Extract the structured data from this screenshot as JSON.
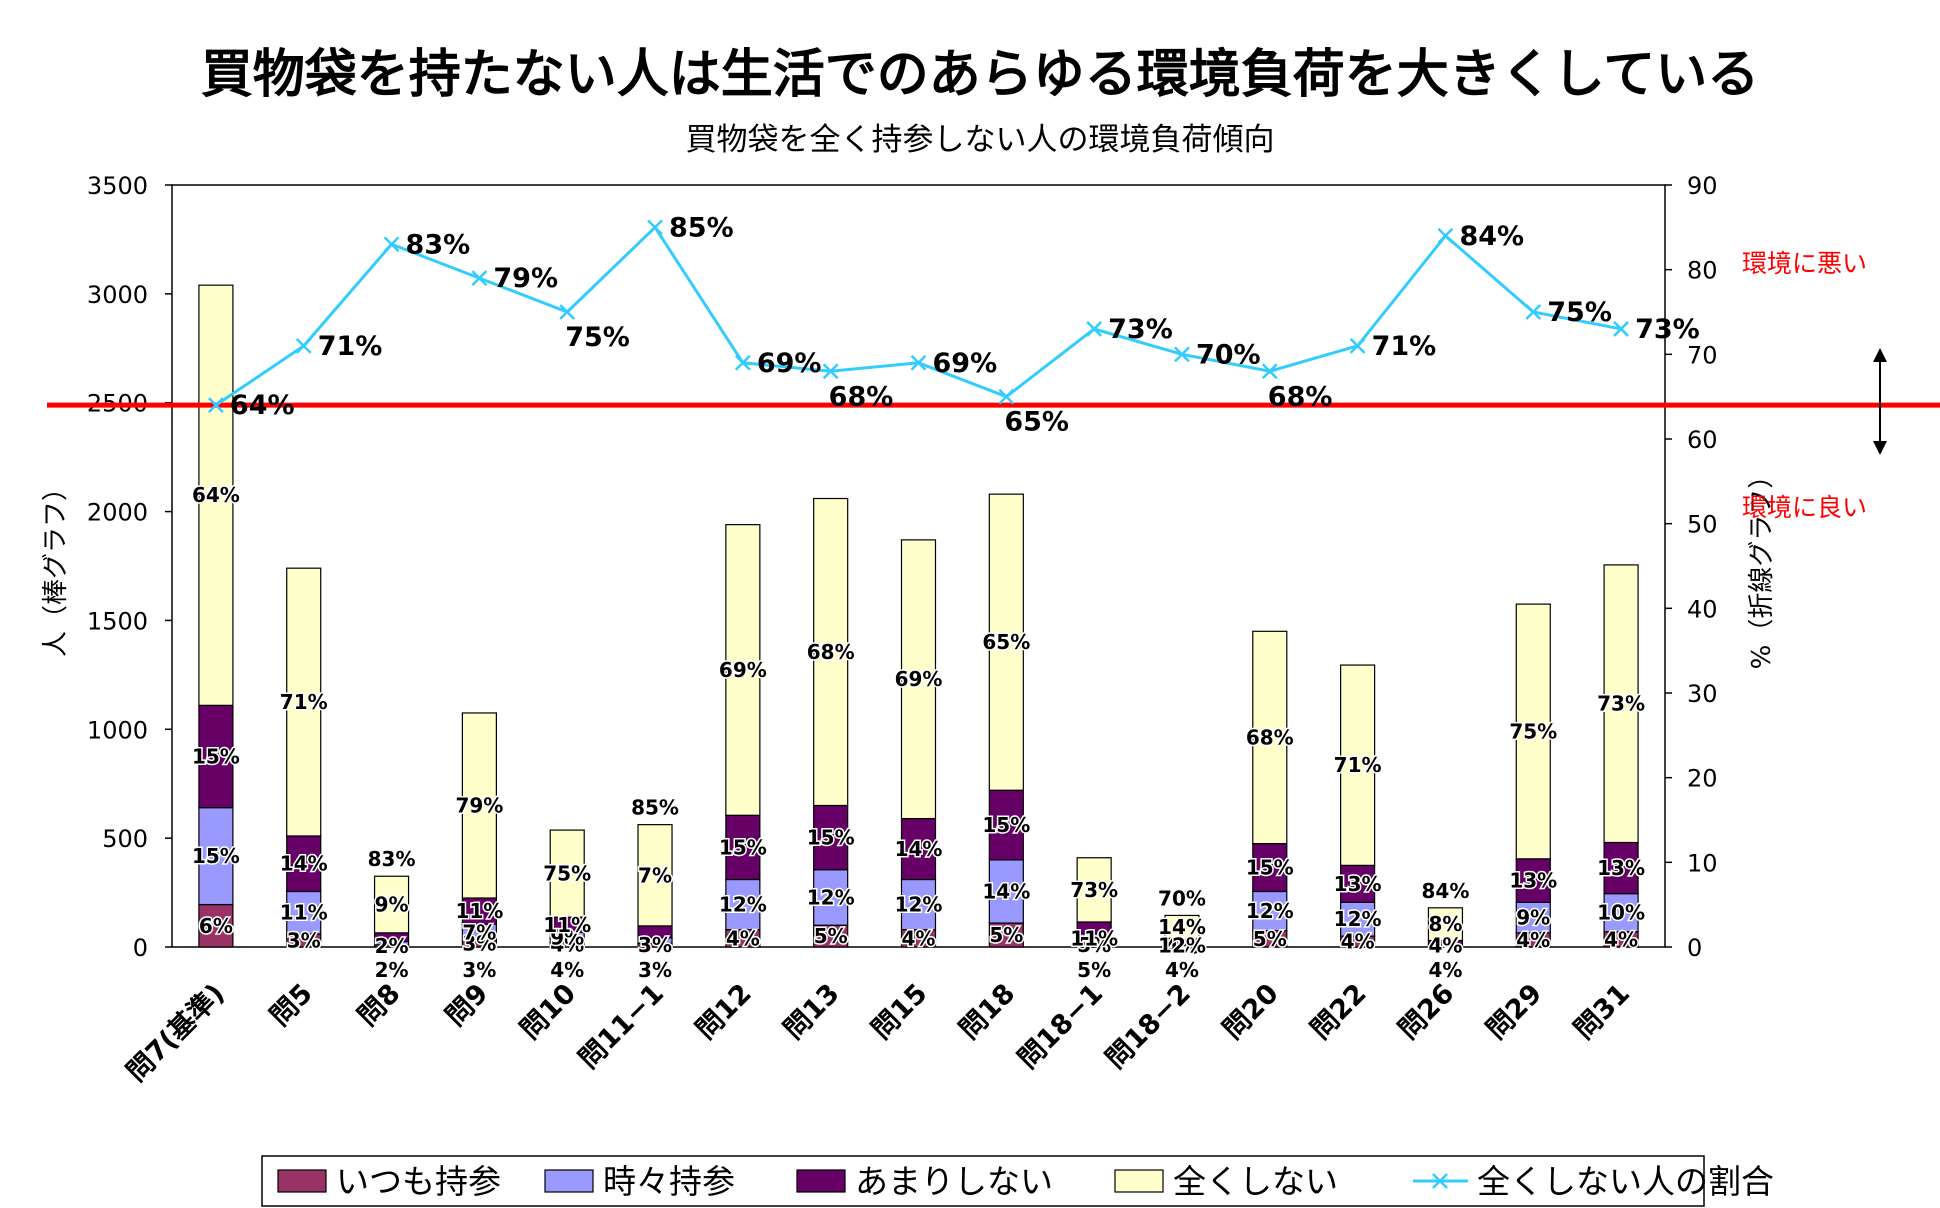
{
  "chart_data": {
    "type": "bar",
    "stacked": true,
    "title": "買物袋を持たない人は生活でのあらゆる環境負荷を大きくしている",
    "subtitle": "買物袋を全く持参しない人の環境負荷傾向",
    "ylabel": "人（棒グラフ）",
    "y2label": "%（折線グラフ）",
    "ylim": [
      0,
      3500
    ],
    "y2lim": [
      0,
      90
    ],
    "yticks": [
      "0",
      "500",
      "1000",
      "1500",
      "2000",
      "2500",
      "3000",
      "3500"
    ],
    "y2ticks": [
      "0",
      "10",
      "20",
      "30",
      "40",
      "50",
      "60",
      "70",
      "80",
      "90"
    ],
    "grid": false,
    "legend_position": "bottom",
    "categories": [
      "問7(基準)",
      "問5",
      "問8",
      "問9",
      "問10",
      "問11−1",
      "問12",
      "問13",
      "問15",
      "問18",
      "問18−1",
      "問18−2",
      "問20",
      "問22",
      "問26",
      "問29",
      "問31"
    ],
    "series": [
      {
        "name": "いつも持参",
        "color": "#993366",
        "values": [
          195,
          60,
          10,
          30,
          22,
          17,
          80,
          100,
          80,
          110,
          20,
          5,
          75,
          50,
          5,
          65,
          70
        ],
        "labels": [
          "6%",
          "3%",
          "2%",
          "3%",
          "4%",
          "3%",
          "4%",
          "5%",
          "4%",
          "5%",
          "5%",
          "4%",
          "5%",
          "4%",
          "4%",
          "4%",
          "4%"
        ]
      },
      {
        "name": "時々持参",
        "color": "#9999ff",
        "values": [
          445,
          195,
          15,
          75,
          45,
          25,
          230,
          255,
          230,
          290,
          40,
          5,
          180,
          155,
          5,
          140,
          175
        ],
        "labels": [
          "15%",
          "11%",
          "",
          "7%",
          "9%",
          "",
          "12%",
          "12%",
          "12%",
          "14%",
          "11%",
          "12%",
          "12%",
          "12%",
          "4%",
          "9%",
          "10%"
        ]
      },
      {
        "name": "あまりしない",
        "color": "#660066",
        "values": [
          470,
          255,
          40,
          120,
          70,
          55,
          295,
          295,
          280,
          320,
          55,
          30,
          220,
          170,
          20,
          200,
          235
        ],
        "labels": [
          "15%",
          "14%",
          "",
          "11%",
          "11%",
          "",
          "15%",
          "15%",
          "14%",
          "15%",
          "",
          "",
          "15%",
          "13%",
          "",
          "13%",
          "13%"
        ]
      },
      {
        "name": "全くしない",
        "color": "#ffffcc",
        "values": [
          1930,
          1230,
          260,
          850,
          400,
          465,
          1335,
          1410,
          1280,
          1360,
          295,
          105,
          975,
          920,
          150,
          1170,
          1275
        ],
        "labels": [
          "64%",
          "71%",
          "9%",
          "79%",
          "75%",
          "7%",
          "69%",
          "68%",
          "69%",
          "65%",
          "73%",
          "14%",
          "68%",
          "71%",
          "8%",
          "75%",
          "73%"
        ]
      }
    ],
    "top_labels": [
      "",
      "",
      "83%",
      "",
      "",
      "85%",
      "",
      "",
      "",
      "",
      "",
      "70%",
      "",
      "",
      "84%",
      "",
      ""
    ],
    "bottom_labels": [
      "",
      "",
      "2%",
      "3%",
      "4%",
      "3%",
      "",
      "",
      "",
      "",
      "5%",
      "4%",
      "",
      "",
      "4%",
      "",
      ""
    ],
    "line_series": {
      "name": "全くしない人の割合",
      "color": "#33ccff",
      "values": [
        64,
        71,
        83,
        79,
        75,
        85,
        69,
        68,
        69,
        65,
        73,
        70,
        68,
        71,
        84,
        75,
        73
      ],
      "labels": [
        "64%",
        "71%",
        "83%",
        "79%",
        "75%",
        "85%",
        "69%",
        "68%",
        "69%",
        "65%",
        "73%",
        "70%",
        "68%",
        "71%",
        "84%",
        "75%",
        "73%"
      ]
    },
    "reference_line": {
      "value": 64,
      "axis": "y2",
      "color": "#ff0000"
    },
    "annotations": {
      "bad": "環境に悪い",
      "good": "環境に良い"
    }
  }
}
